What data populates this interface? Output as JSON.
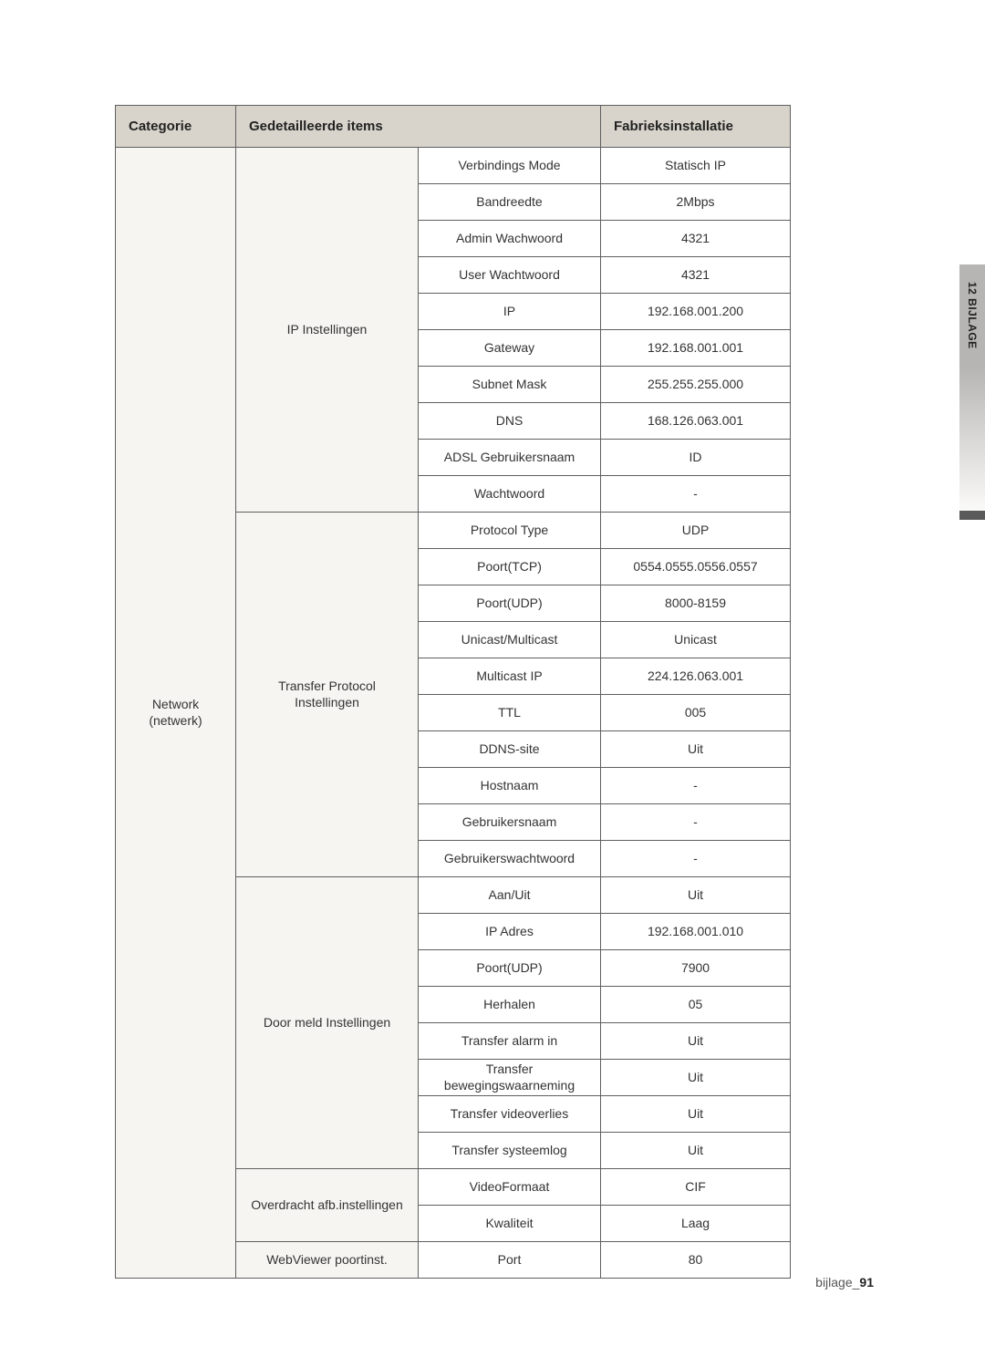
{
  "colors": {
    "header_bg": "#d8d4cc",
    "group_bg": "#f6f5f2",
    "border": "#5f5f5f",
    "text": "#333333",
    "tab_bg": "#b7b5b3"
  },
  "typography": {
    "header_fontsize": 15,
    "cell_fontsize": 14,
    "footer_fontsize": 14,
    "tab_fontsize": 12
  },
  "table": {
    "headers": {
      "col1": "Categorie",
      "col2": "Gedetailleerde items",
      "col4": "Fabrieksinstallatie"
    },
    "category": "Network\n(netwerk)",
    "groups": [
      {
        "label": "IP Instellingen",
        "rows": [
          {
            "item": "Verbindings Mode",
            "value": "Statisch IP"
          },
          {
            "item": "Bandreedte",
            "value": "2Mbps"
          },
          {
            "item": "Admin Wachwoord",
            "value": "4321"
          },
          {
            "item": "User Wachtwoord",
            "value": "4321"
          },
          {
            "item": "IP",
            "value": "192.168.001.200"
          },
          {
            "item": "Gateway",
            "value": "192.168.001.001"
          },
          {
            "item": "Subnet Mask",
            "value": "255.255.255.000"
          },
          {
            "item": "DNS",
            "value": "168.126.063.001"
          },
          {
            "item": "ADSL Gebruikersnaam",
            "value": "ID"
          },
          {
            "item": "Wachtwoord",
            "value": "-"
          }
        ]
      },
      {
        "label": "Transfer Protocol\nInstellingen",
        "rows": [
          {
            "item": "Protocol Type",
            "value": "UDP"
          },
          {
            "item": "Poort(TCP)",
            "value": "0554.0555.0556.0557"
          },
          {
            "item": "Poort(UDP)",
            "value": "8000-8159"
          },
          {
            "item": "Unicast/Multicast",
            "value": "Unicast"
          },
          {
            "item": "Multicast IP",
            "value": "224.126.063.001"
          },
          {
            "item": "TTL",
            "value": "005"
          },
          {
            "item": "DDNS-site",
            "value": "Uit"
          },
          {
            "item": "Hostnaam",
            "value": "-"
          },
          {
            "item": "Gebruikersnaam",
            "value": "-"
          },
          {
            "item": "Gebruikerswachtwoord",
            "value": "-"
          }
        ]
      },
      {
        "label": "Door meld Instellingen",
        "rows": [
          {
            "item": "Aan/Uit",
            "value": "Uit"
          },
          {
            "item": "IP Adres",
            "value": "192.168.001.010"
          },
          {
            "item": "Poort(UDP)",
            "value": "7900"
          },
          {
            "item": "Herhalen",
            "value": "05"
          },
          {
            "item": "Transfer alarm in",
            "value": "Uit"
          },
          {
            "item": "Transfer\nbewegingswaarneming",
            "value": "Uit"
          },
          {
            "item": "Transfer videoverlies",
            "value": "Uit"
          },
          {
            "item": "Transfer systeemlog",
            "value": "Uit"
          }
        ]
      },
      {
        "label": "Overdracht afb.instellingen",
        "rows": [
          {
            "item": "VideoFormaat",
            "value": "CIF"
          },
          {
            "item": "Kwaliteit",
            "value": "Laag"
          }
        ]
      },
      {
        "label": "WebViewer poortinst.",
        "rows": [
          {
            "item": "Port",
            "value": "80"
          }
        ]
      }
    ]
  },
  "side_tab": "12 BIJLAGE",
  "footer": {
    "text": "bijlage_",
    "page": "91"
  }
}
